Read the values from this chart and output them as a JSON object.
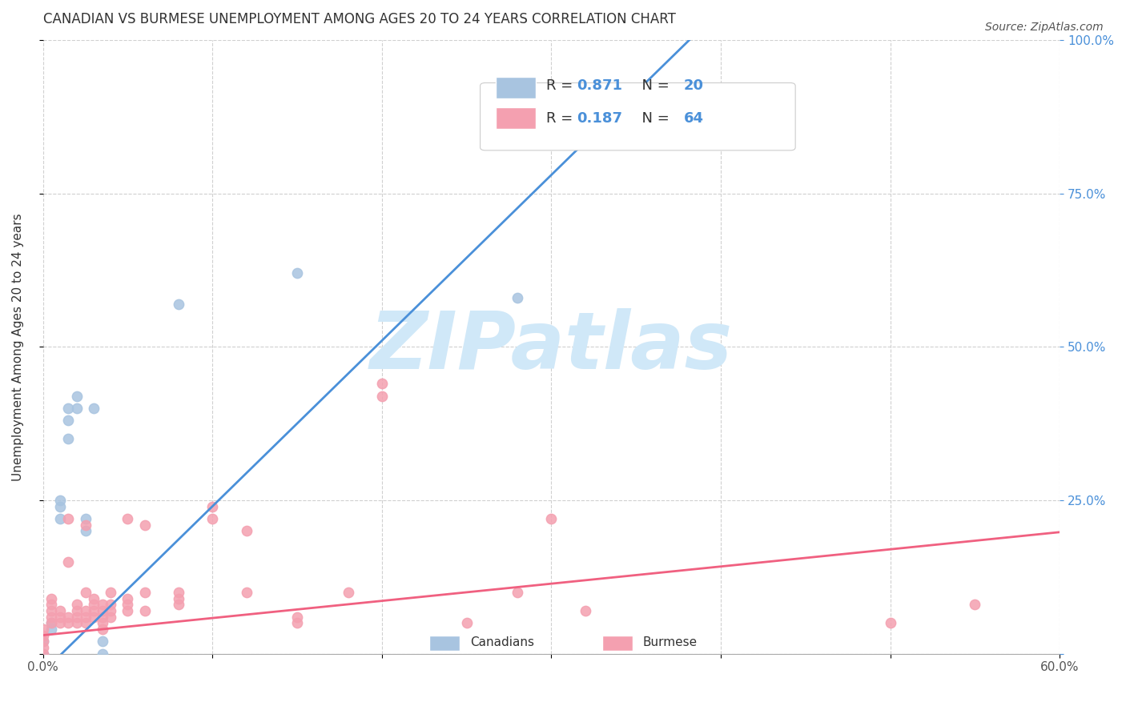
{
  "title": "CANADIAN VS BURMESE UNEMPLOYMENT AMONG AGES 20 TO 24 YEARS CORRELATION CHART",
  "source": "Source: ZipAtlas.com",
  "xlabel": "",
  "ylabel": "Unemployment Among Ages 20 to 24 years",
  "xlim": [
    0.0,
    0.6
  ],
  "ylim": [
    0.0,
    1.0
  ],
  "xticks": [
    0.0,
    0.1,
    0.2,
    0.3,
    0.4,
    0.5,
    0.6
  ],
  "xticklabels": [
    "0.0%",
    "",
    "",
    "",
    "",
    "",
    "60.0%"
  ],
  "yticks": [
    0.0,
    0.25,
    0.5,
    0.75,
    1.0
  ],
  "yticklabels": [
    "",
    "25.0%",
    "50.0%",
    "75.0%",
    "100.0%"
  ],
  "canadian_R": 0.871,
  "canadian_N": 20,
  "burmese_R": 0.187,
  "burmese_N": 64,
  "canadian_color": "#a8c4e0",
  "burmese_color": "#f4a0b0",
  "canadian_line_color": "#4a90d9",
  "burmese_line_color": "#f06080",
  "watermark": "ZIPatlas",
  "watermark_color": "#d0e8f8",
  "canadian_points": [
    [
      0.0,
      0.0
    ],
    [
      0.0,
      0.02
    ],
    [
      0.005,
      0.04
    ],
    [
      0.005,
      0.05
    ],
    [
      0.01,
      0.22
    ],
    [
      0.01,
      0.24
    ],
    [
      0.01,
      0.25
    ],
    [
      0.015,
      0.35
    ],
    [
      0.015,
      0.38
    ],
    [
      0.015,
      0.4
    ],
    [
      0.02,
      0.4
    ],
    [
      0.02,
      0.42
    ],
    [
      0.025,
      0.2
    ],
    [
      0.025,
      0.22
    ],
    [
      0.03,
      0.4
    ],
    [
      0.035,
      0.0
    ],
    [
      0.035,
      0.02
    ],
    [
      0.08,
      0.57
    ],
    [
      0.15,
      0.62
    ],
    [
      0.28,
      0.58
    ]
  ],
  "burmese_points": [
    [
      0.0,
      0.0
    ],
    [
      0.0,
      0.01
    ],
    [
      0.0,
      0.02
    ],
    [
      0.0,
      0.03
    ],
    [
      0.0,
      0.04
    ],
    [
      0.005,
      0.05
    ],
    [
      0.005,
      0.06
    ],
    [
      0.005,
      0.07
    ],
    [
      0.005,
      0.08
    ],
    [
      0.005,
      0.09
    ],
    [
      0.01,
      0.05
    ],
    [
      0.01,
      0.06
    ],
    [
      0.01,
      0.07
    ],
    [
      0.015,
      0.05
    ],
    [
      0.015,
      0.06
    ],
    [
      0.015,
      0.15
    ],
    [
      0.015,
      0.22
    ],
    [
      0.02,
      0.05
    ],
    [
      0.02,
      0.06
    ],
    [
      0.02,
      0.07
    ],
    [
      0.02,
      0.08
    ],
    [
      0.025,
      0.05
    ],
    [
      0.025,
      0.06
    ],
    [
      0.025,
      0.07
    ],
    [
      0.025,
      0.1
    ],
    [
      0.025,
      0.21
    ],
    [
      0.03,
      0.06
    ],
    [
      0.03,
      0.07
    ],
    [
      0.03,
      0.08
    ],
    [
      0.03,
      0.09
    ],
    [
      0.035,
      0.05
    ],
    [
      0.035,
      0.04
    ],
    [
      0.035,
      0.06
    ],
    [
      0.035,
      0.07
    ],
    [
      0.035,
      0.08
    ],
    [
      0.04,
      0.06
    ],
    [
      0.04,
      0.07
    ],
    [
      0.04,
      0.08
    ],
    [
      0.04,
      0.1
    ],
    [
      0.05,
      0.07
    ],
    [
      0.05,
      0.08
    ],
    [
      0.05,
      0.09
    ],
    [
      0.05,
      0.22
    ],
    [
      0.06,
      0.07
    ],
    [
      0.06,
      0.1
    ],
    [
      0.06,
      0.21
    ],
    [
      0.08,
      0.08
    ],
    [
      0.08,
      0.09
    ],
    [
      0.08,
      0.1
    ],
    [
      0.1,
      0.22
    ],
    [
      0.1,
      0.24
    ],
    [
      0.12,
      0.1
    ],
    [
      0.12,
      0.2
    ],
    [
      0.15,
      0.05
    ],
    [
      0.15,
      0.06
    ],
    [
      0.18,
      0.1
    ],
    [
      0.2,
      0.42
    ],
    [
      0.2,
      0.44
    ],
    [
      0.25,
      0.05
    ],
    [
      0.28,
      0.1
    ],
    [
      0.3,
      0.22
    ],
    [
      0.32,
      0.07
    ],
    [
      0.5,
      0.05
    ],
    [
      0.55,
      0.08
    ]
  ],
  "background_color": "#ffffff",
  "grid_color": "#d0d0d0",
  "title_fontsize": 12,
  "axis_label_fontsize": 11,
  "tick_fontsize": 11,
  "legend_fontsize": 13
}
